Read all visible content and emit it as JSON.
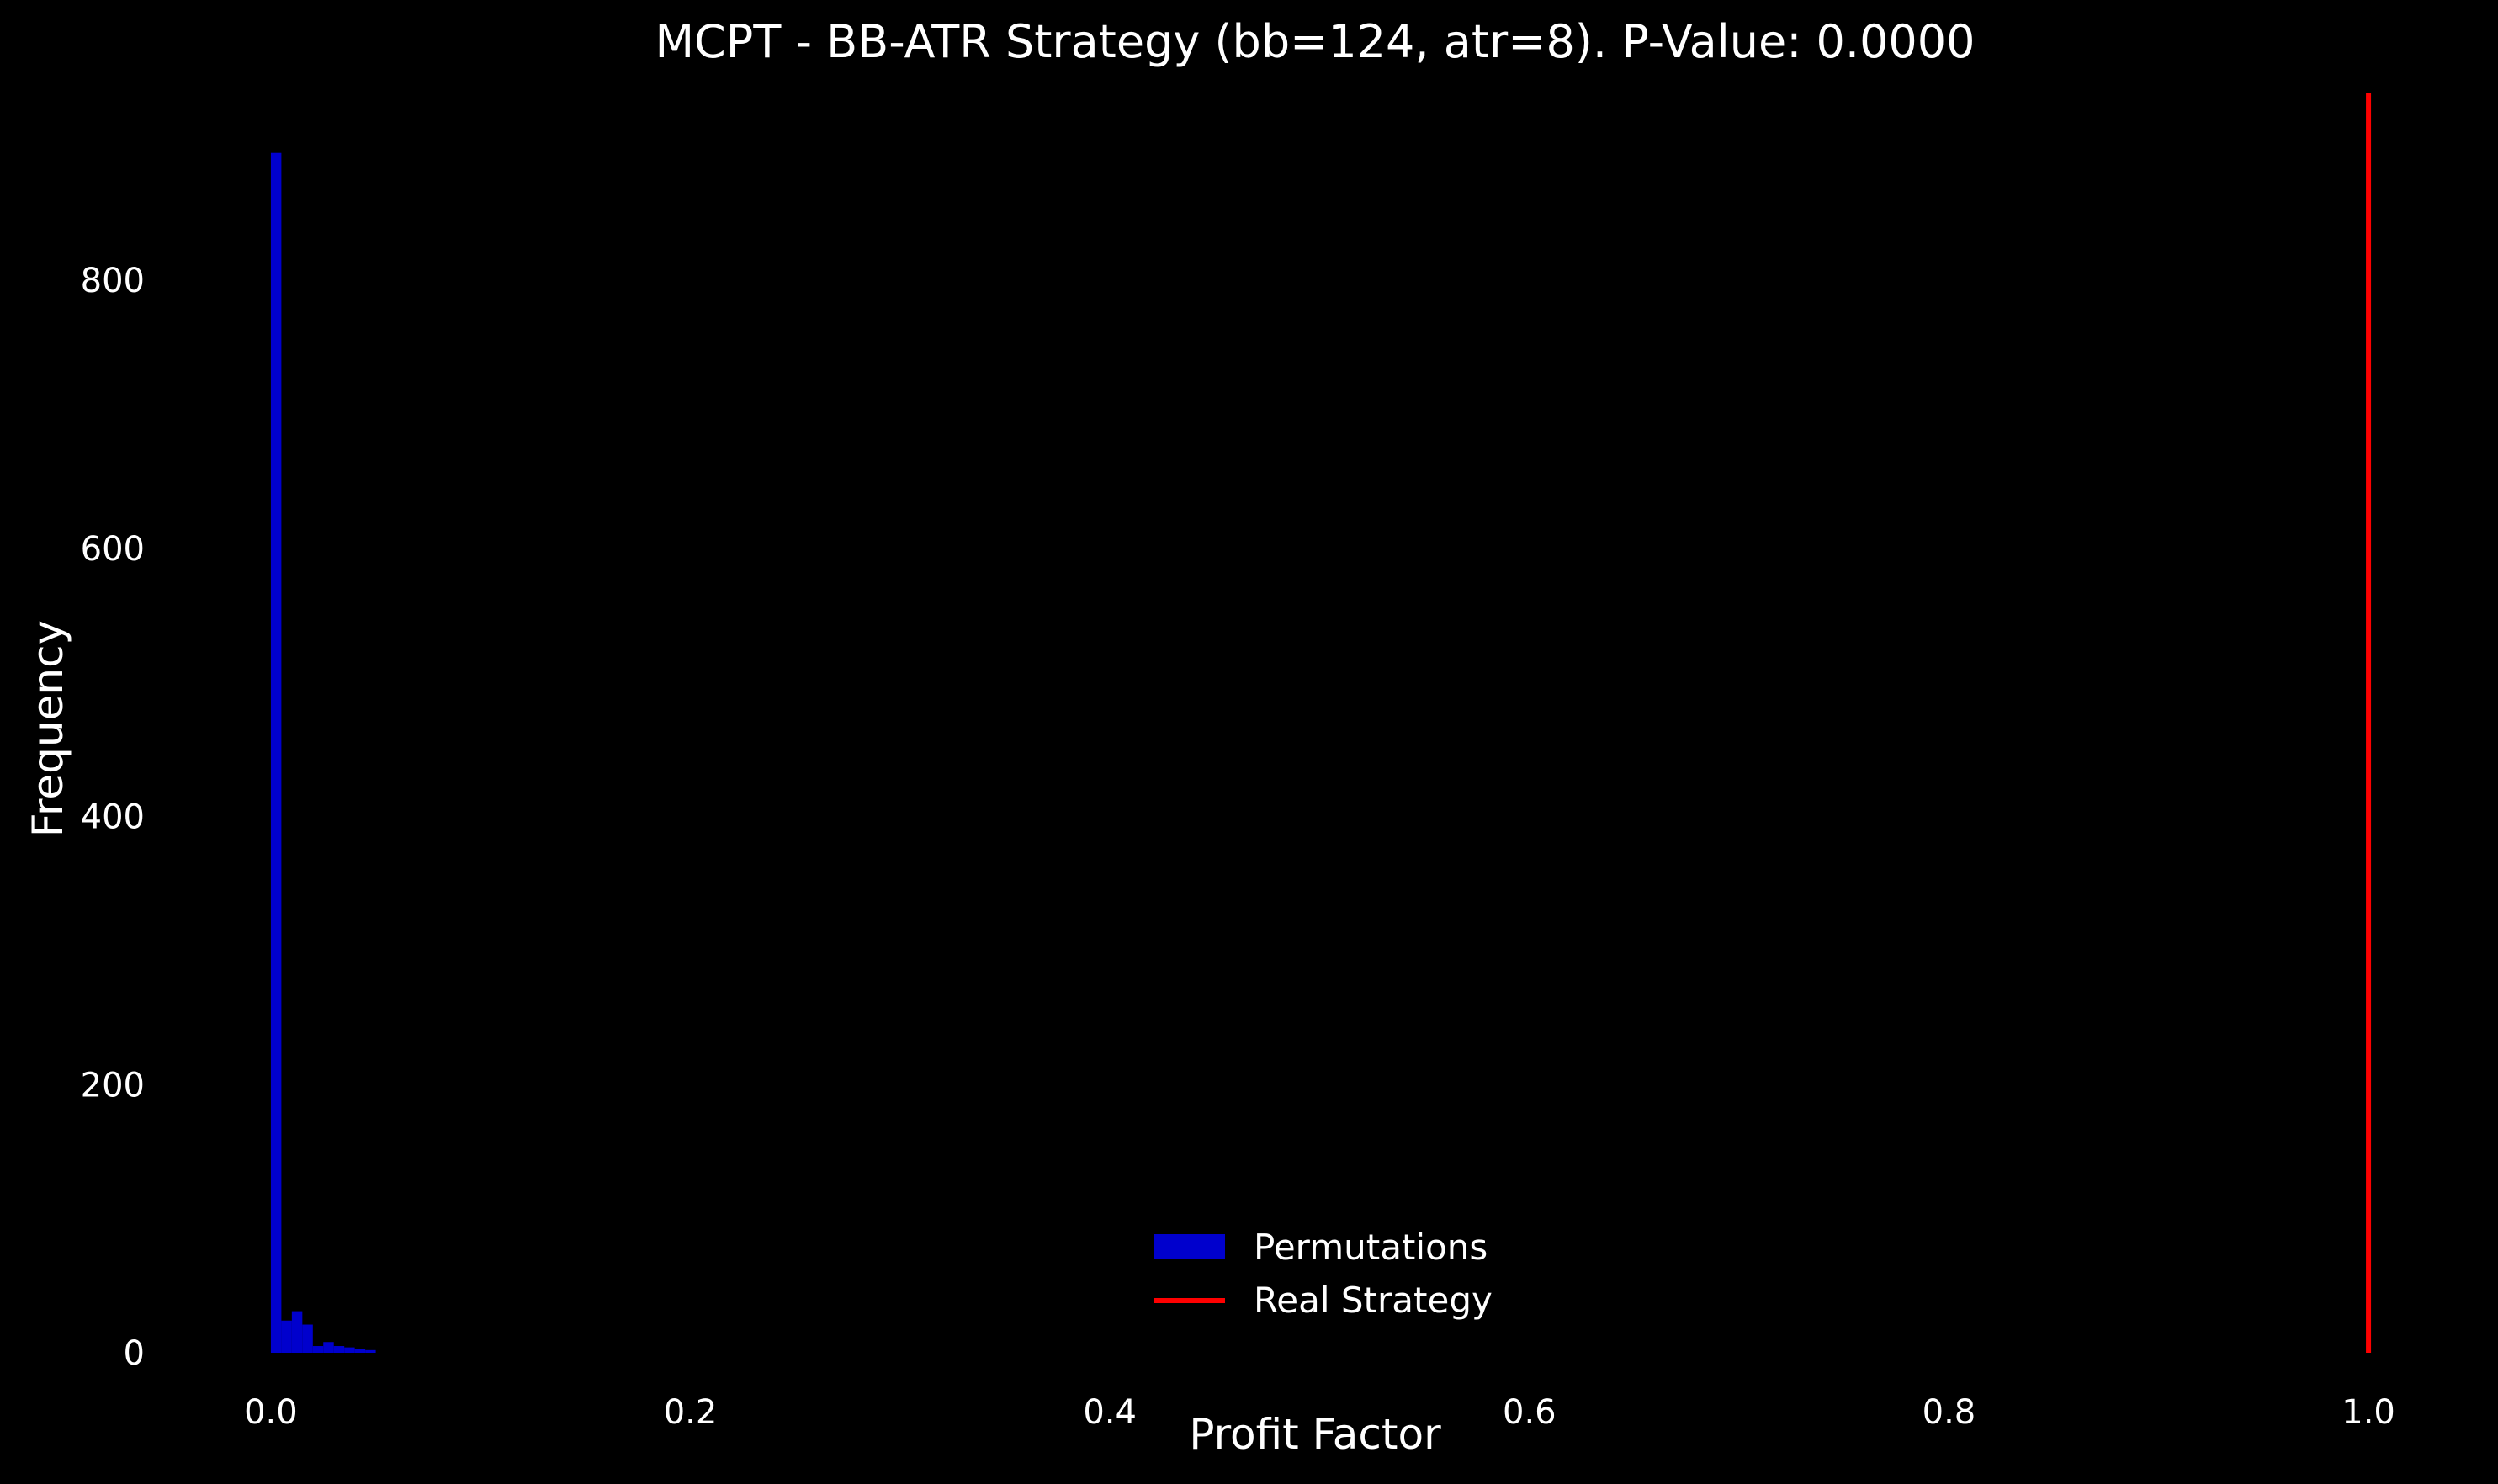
{
  "chart_data": {
    "type": "bar",
    "subtype": "histogram",
    "title": "MCPT - BB-ATR Strategy (bb=124, atr=8). P-Value: 0.0000",
    "xlabel": "Profit Factor",
    "ylabel": "Frequency",
    "xlim": [
      -0.01,
      1.01
    ],
    "ylim": [
      0,
      940
    ],
    "x_ticks": [
      0.0,
      0.2,
      0.4,
      0.6,
      0.8,
      1.0
    ],
    "x_tick_labels": [
      "0.0",
      "0.2",
      "0.4",
      "0.6",
      "0.8",
      "1.0"
    ],
    "y_ticks": [
      0,
      200,
      400,
      600,
      800
    ],
    "y_tick_labels": [
      "0",
      "200",
      "400",
      "600",
      "800"
    ],
    "grid": false,
    "legend_position": "bottom-center",
    "background": "#000000",
    "series": [
      {
        "name": "Permutations",
        "kind": "histogram",
        "color": "#0000cd",
        "bins": [
          {
            "x0": 0.0,
            "x1": 0.005,
            "value": 895
          },
          {
            "x0": 0.005,
            "x1": 0.01,
            "value": 24
          },
          {
            "x0": 0.01,
            "x1": 0.015,
            "value": 31
          },
          {
            "x0": 0.015,
            "x1": 0.02,
            "value": 21
          },
          {
            "x0": 0.02,
            "x1": 0.025,
            "value": 5
          },
          {
            "x0": 0.025,
            "x1": 0.03,
            "value": 8
          },
          {
            "x0": 0.03,
            "x1": 0.035,
            "value": 5
          },
          {
            "x0": 0.035,
            "x1": 0.04,
            "value": 4
          },
          {
            "x0": 0.04,
            "x1": 0.045,
            "value": 3
          },
          {
            "x0": 0.045,
            "x1": 0.05,
            "value": 2
          }
        ]
      },
      {
        "name": "Real Strategy",
        "kind": "vertical-line",
        "color": "#ff0000",
        "x": 1.0
      }
    ]
  }
}
